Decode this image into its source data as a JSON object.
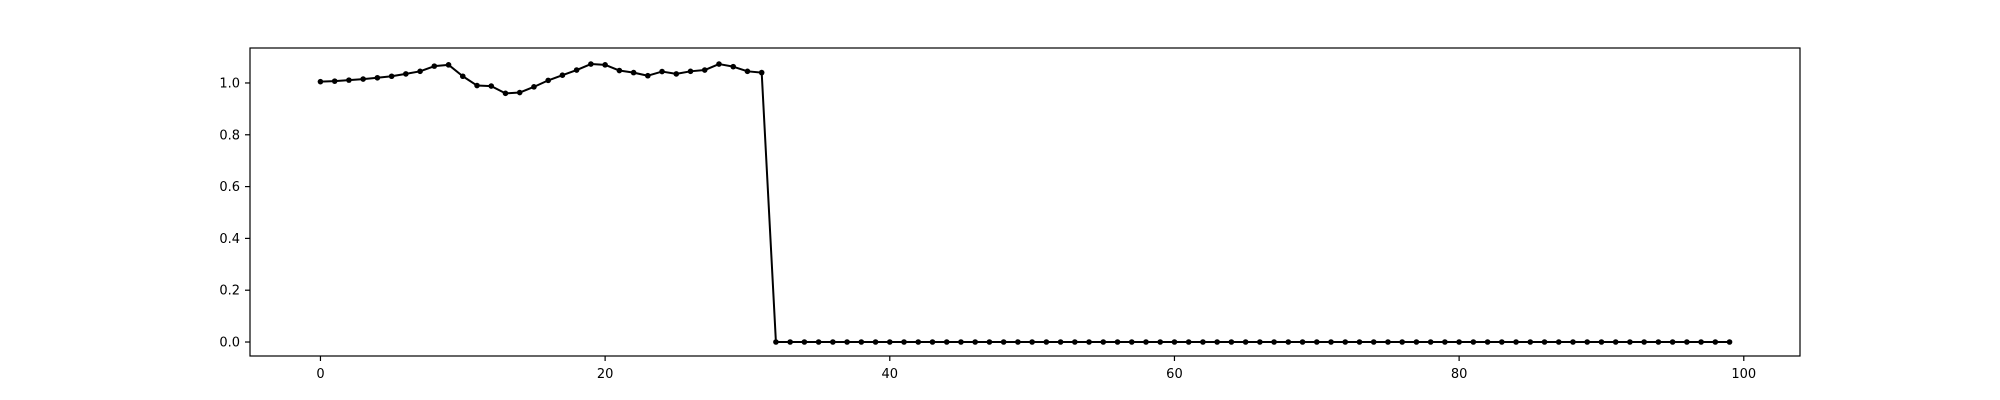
{
  "chart_data": {
    "type": "line",
    "title": "",
    "xlabel": "",
    "ylabel": "",
    "xlim": [
      -4.95,
      103.95
    ],
    "ylim": [
      -0.054,
      1.135
    ],
    "xticks": [
      0,
      20,
      40,
      60,
      80,
      100
    ],
    "xtick_labels": [
      "0",
      "20",
      "40",
      "60",
      "80",
      "100"
    ],
    "yticks": [
      0.0,
      0.2,
      0.4,
      0.6,
      0.8,
      1.0
    ],
    "ytick_labels": [
      "0.0",
      "0.2",
      "0.4",
      "0.6",
      "0.8",
      "1.0"
    ],
    "grid": false,
    "legend": "none",
    "series": [
      {
        "color": "#000000",
        "marker": "circle",
        "x": [
          0,
          1,
          2,
          3,
          4,
          5,
          6,
          7,
          8,
          9,
          10,
          11,
          12,
          13,
          14,
          15,
          16,
          17,
          18,
          19,
          20,
          21,
          22,
          23,
          24,
          25,
          26,
          27,
          28,
          29,
          30,
          31,
          32,
          33,
          34,
          35,
          36,
          37,
          38,
          39,
          40,
          41,
          42,
          43,
          44,
          45,
          46,
          47,
          48,
          49,
          50,
          51,
          52,
          53,
          54,
          55,
          56,
          57,
          58,
          59,
          60,
          61,
          62,
          63,
          64,
          65,
          66,
          67,
          68,
          69,
          70,
          71,
          72,
          73,
          74,
          75,
          76,
          77,
          78,
          79,
          80,
          81,
          82,
          83,
          84,
          85,
          86,
          87,
          88,
          89,
          90,
          91,
          92,
          93,
          94,
          95,
          96,
          97,
          98,
          99
        ],
        "y": [
          1.005,
          1.007,
          1.011,
          1.015,
          1.02,
          1.026,
          1.035,
          1.045,
          1.065,
          1.07,
          1.026,
          0.99,
          0.988,
          0.96,
          0.963,
          0.985,
          1.01,
          1.03,
          1.05,
          1.073,
          1.07,
          1.048,
          1.04,
          1.028,
          1.044,
          1.035,
          1.045,
          1.05,
          1.073,
          1.063,
          1.045,
          1.04,
          0.0,
          0.0,
          0.0,
          0.0,
          0.0,
          0.0,
          0.0,
          0.0,
          0.0,
          0.0,
          0.0,
          0.0,
          0.0,
          0.0,
          0.0,
          0.0,
          0.0,
          0.0,
          0.0,
          0.0,
          0.0,
          0.0,
          0.0,
          0.0,
          0.0,
          0.0,
          0.0,
          0.0,
          0.0,
          0.0,
          0.0,
          0.0,
          0.0,
          0.0,
          0.0,
          0.0,
          0.0,
          0.0,
          0.0,
          0.0,
          0.0,
          0.0,
          0.0,
          0.0,
          0.0,
          0.0,
          0.0,
          0.0,
          0.0,
          0.0,
          0.0,
          0.0,
          0.0,
          0.0,
          0.0,
          0.0,
          0.0,
          0.0,
          0.0,
          0.0,
          0.0,
          0.0,
          0.0,
          0.0,
          0.0,
          0.0,
          0.0,
          0.0
        ]
      }
    ]
  }
}
